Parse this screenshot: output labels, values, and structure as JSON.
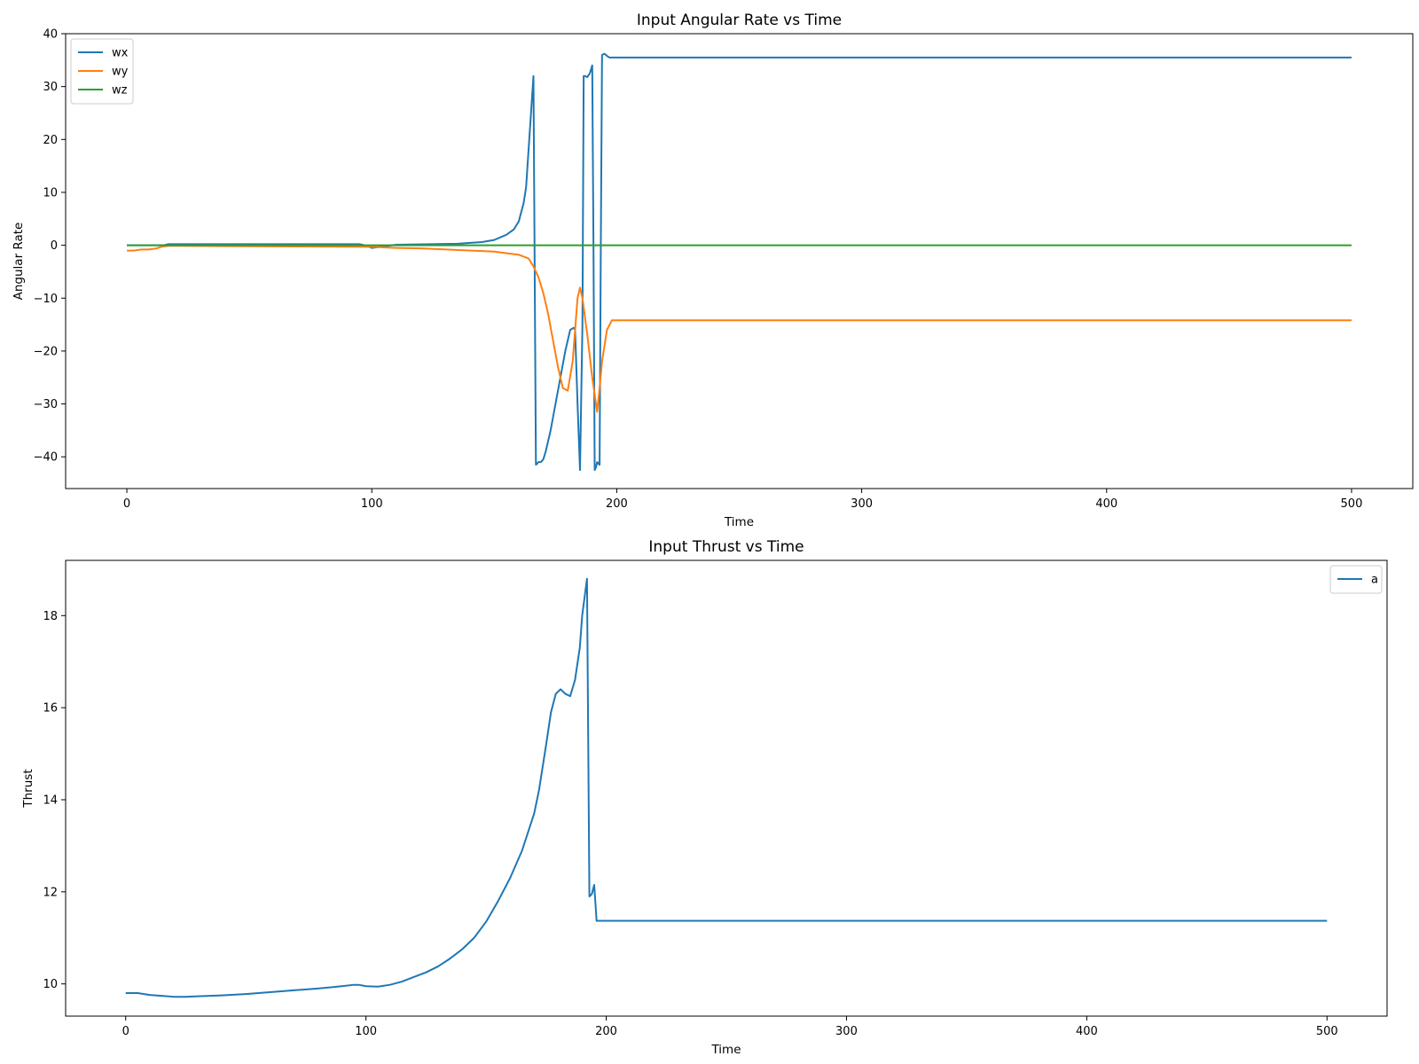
{
  "chart_data": [
    {
      "type": "line",
      "title": "Input Angular Rate vs Time",
      "xlabel": "Time",
      "ylabel": "Angular Rate",
      "xlim": [
        -25,
        525
      ],
      "ylim": [
        -46,
        40
      ],
      "xticks": [
        0,
        100,
        200,
        300,
        400,
        500
      ],
      "yticks": [
        -40,
        -30,
        -20,
        -10,
        0,
        10,
        20,
        30,
        40
      ],
      "grid": false,
      "legend": "upper-left",
      "series": [
        {
          "name": "wx",
          "color": "#1f77b4",
          "x": [
            0,
            15,
            17,
            95,
            97,
            100,
            110,
            135,
            145,
            150,
            155,
            158,
            160,
            162,
            163,
            164,
            165,
            166,
            167,
            167.5,
            168,
            169,
            170,
            171,
            173,
            175,
            177,
            179,
            181,
            182.5,
            183,
            184,
            185,
            186,
            186.5,
            187,
            188,
            189,
            190,
            190.5,
            191,
            191.5,
            192,
            193,
            193.5,
            194,
            195,
            196,
            197,
            200,
            300,
            400,
            500
          ],
          "y": [
            0,
            0,
            0.2,
            0.2,
            0,
            -0.5,
            0.1,
            0.3,
            0.6,
            1.0,
            2.0,
            3.0,
            4.5,
            8,
            11,
            18,
            25,
            32,
            -41.5,
            -41.3,
            -41,
            -41,
            -40.5,
            -39,
            -35,
            -30,
            -25,
            -20,
            -16,
            -15.6,
            -16,
            -30,
            -42.5,
            -15,
            32,
            32,
            31.8,
            32.5,
            34,
            0,
            -42.5,
            -42,
            -41,
            -41.5,
            0,
            36,
            36.2,
            35.8,
            35.5,
            35.5,
            35.5,
            35.5,
            35.5
          ]
        },
        {
          "name": "wy",
          "color": "#ff7f0e",
          "x": [
            0,
            3,
            6,
            9,
            12,
            14,
            17,
            20,
            50,
            100,
            110,
            120,
            150,
            160,
            164,
            166,
            168,
            170,
            172,
            174,
            176,
            178,
            180,
            182,
            184,
            185,
            186,
            188,
            190,
            192,
            193,
            194,
            195,
            196,
            198,
            200,
            300,
            400,
            500
          ],
          "y": [
            -1,
            -1,
            -0.8,
            -0.8,
            -0.6,
            -0.3,
            -0.1,
            -0.1,
            -0.2,
            -0.3,
            -0.5,
            -0.6,
            -1.2,
            -1.8,
            -2.5,
            -4,
            -6,
            -9,
            -13,
            -18,
            -23,
            -27,
            -27.5,
            -22,
            -10,
            -8,
            -10,
            -17,
            -25,
            -31.5,
            -27,
            -22,
            -19,
            -16,
            -14.2,
            -14.2,
            -14.2,
            -14.2,
            -14.2
          ]
        },
        {
          "name": "wz",
          "color": "#2ca02c",
          "x": [
            0,
            500
          ],
          "y": [
            0,
            0
          ]
        }
      ]
    },
    {
      "type": "line",
      "title": "Input Thrust vs Time",
      "xlabel": "Time",
      "ylabel": "Thrust",
      "xlim": [
        -25,
        525
      ],
      "ylim": [
        9.3,
        19.2
      ],
      "xticks": [
        0,
        100,
        200,
        300,
        400,
        500
      ],
      "yticks": [
        10,
        12,
        14,
        16,
        18
      ],
      "grid": false,
      "legend": "upper-right",
      "series": [
        {
          "name": "a",
          "color": "#1f77b4",
          "x": [
            0,
            5,
            10,
            15,
            20,
            25,
            30,
            40,
            50,
            60,
            70,
            80,
            90,
            95,
            97,
            100,
            105,
            110,
            115,
            120,
            125,
            130,
            135,
            140,
            145,
            150,
            155,
            160,
            165,
            170,
            172,
            175,
            177,
            179,
            181,
            183,
            185,
            187,
            189,
            190,
            191,
            192,
            193,
            194,
            195,
            196,
            200,
            300,
            400,
            500
          ],
          "y": [
            9.8,
            9.8,
            9.76,
            9.74,
            9.72,
            9.72,
            9.73,
            9.75,
            9.78,
            9.82,
            9.86,
            9.9,
            9.95,
            9.98,
            9.98,
            9.95,
            9.94,
            9.98,
            10.05,
            10.15,
            10.25,
            10.38,
            10.55,
            10.75,
            11.0,
            11.35,
            11.8,
            12.3,
            12.9,
            13.7,
            14.2,
            15.2,
            15.9,
            16.3,
            16.4,
            16.3,
            16.25,
            16.6,
            17.3,
            18.0,
            18.4,
            18.8,
            11.9,
            11.95,
            12.15,
            11.37,
            11.37,
            11.37,
            11.37,
            11.37
          ]
        }
      ]
    }
  ]
}
